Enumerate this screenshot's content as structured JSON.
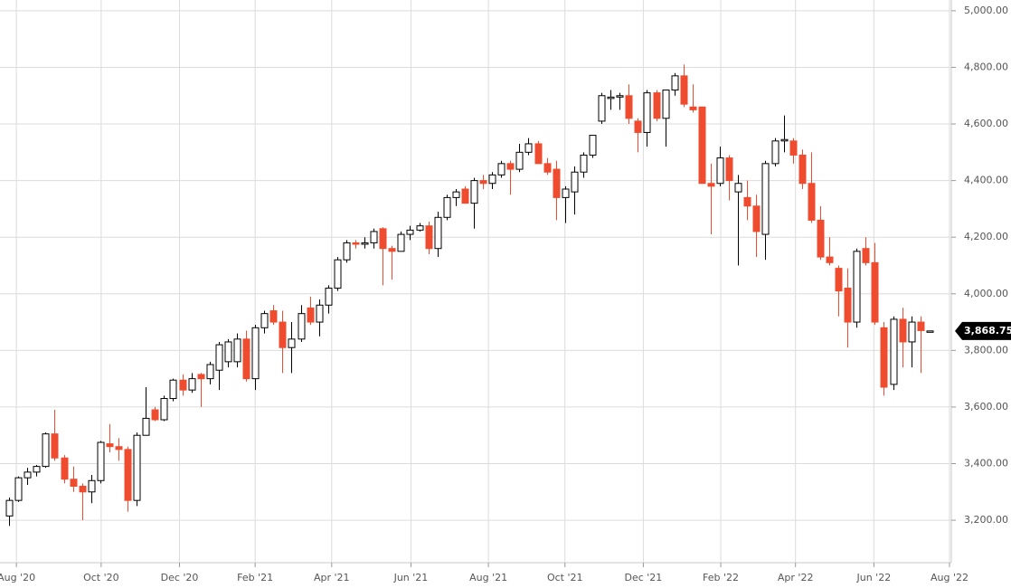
{
  "chart_data": {
    "type": "candlestick",
    "open": [
      3215,
      3270,
      3350,
      3370,
      3390,
      3505,
      3420,
      3345,
      3320,
      3300,
      3340,
      3470,
      3460,
      3450,
      3270,
      3500,
      3590,
      3555,
      3630,
      3695,
      3660,
      3715,
      3700,
      3730,
      3760,
      3760,
      3840,
      3700,
      3880,
      3940,
      3900,
      3810,
      3840,
      3950,
      3900,
      3960,
      4020,
      4120,
      4180,
      4175,
      4180,
      4230,
      4160,
      4150,
      4210,
      4225,
      4240,
      4160,
      4270,
      4340,
      4370,
      4320,
      4400,
      4390,
      4420,
      4460,
      4440,
      4500,
      4530,
      4460,
      4440,
      4340,
      4360,
      4430,
      4490,
      4610,
      4690,
      4695,
      4700,
      4610,
      4570,
      4710,
      4620,
      4720,
      4770,
      4660,
      4660,
      4390,
      4390,
      4480,
      4360,
      4340,
      4310,
      4210,
      4460,
      4540,
      4540,
      4490,
      4390,
      4260,
      4130,
      4090,
      4020,
      3900,
      4160,
      4110,
      3880,
      3680,
      3910,
      3830,
      3900,
      3868.75
    ],
    "high": [
      3280,
      3355,
      3385,
      3395,
      3510,
      3590,
      3430,
      3390,
      3330,
      3360,
      3480,
      3540,
      3490,
      3460,
      3510,
      3670,
      3600,
      3640,
      3700,
      3715,
      3720,
      3720,
      3760,
      3830,
      3840,
      3860,
      3870,
      3890,
      3940,
      3960,
      3940,
      3900,
      3960,
      3990,
      3980,
      4030,
      4130,
      4190,
      4190,
      4200,
      4230,
      4235,
      4170,
      4220,
      4240,
      4250,
      4255,
      4290,
      4350,
      4370,
      4380,
      4410,
      4420,
      4430,
      4470,
      4470,
      4530,
      4550,
      4540,
      4480,
      4470,
      4380,
      4450,
      4500,
      4560,
      4710,
      4720,
      4710,
      4740,
      4620,
      4720,
      4720,
      4720,
      4780,
      4810,
      4740,
      4660,
      4460,
      4520,
      4490,
      4420,
      4400,
      4350,
      4470,
      4550,
      4630,
      4550,
      4510,
      4500,
      4310,
      4200,
      4100,
      4090,
      4160,
      4200,
      4180,
      3900,
      3920,
      3950,
      3920,
      3920,
      3868.75
    ],
    "low": [
      3180,
      3265,
      3325,
      3355,
      3385,
      3410,
      3330,
      3300,
      3200,
      3260,
      3330,
      3440,
      3410,
      3230,
      3250,
      3500,
      3550,
      3550,
      3620,
      3640,
      3650,
      3600,
      3680,
      3660,
      3740,
      3740,
      3690,
      3660,
      3860,
      3890,
      3720,
      3720,
      3830,
      3890,
      3850,
      3930,
      4010,
      4110,
      4160,
      4160,
      4160,
      4030,
      4050,
      4150,
      4190,
      4220,
      4140,
      4130,
      4260,
      4310,
      4320,
      4230,
      4370,
      4370,
      4410,
      4350,
      4430,
      4490,
      4460,
      4420,
      4260,
      4250,
      4280,
      4410,
      4480,
      4600,
      4650,
      4650,
      4600,
      4500,
      4520,
      4610,
      4520,
      4700,
      4660,
      4640,
      4390,
      4210,
      4380,
      4330,
      4100,
      4260,
      4130,
      4120,
      4450,
      4500,
      4460,
      4370,
      4250,
      4120,
      4100,
      3920,
      3810,
      3880,
      4100,
      3890,
      3640,
      3660,
      3740,
      3740,
      3720,
      3868.75
    ],
    "close": [
      3270,
      3350,
      3370,
      3390,
      3505,
      3420,
      3345,
      3320,
      3300,
      3340,
      3475,
      3460,
      3450,
      3270,
      3500,
      3560,
      3555,
      3630,
      3695,
      3660,
      3700,
      3700,
      3750,
      3820,
      3830,
      3840,
      3700,
      3880,
      3930,
      3900,
      3810,
      3840,
      3930,
      3900,
      3960,
      4020,
      4120,
      4180,
      4175,
      4180,
      4220,
      4160,
      4150,
      4210,
      4225,
      4240,
      4160,
      4270,
      4340,
      4360,
      4320,
      4400,
      4390,
      4420,
      4460,
      4440,
      4500,
      4530,
      4460,
      4430,
      4340,
      4370,
      4430,
      4490,
      4560,
      4700,
      4695,
      4700,
      4620,
      4570,
      4710,
      4620,
      4720,
      4770,
      4670,
      4650,
      4390,
      4380,
      4480,
      4400,
      4390,
      4310,
      4220,
      4460,
      4540,
      4545,
      4490,
      4390,
      4260,
      4130,
      4110,
      4010,
      3900,
      4150,
      4110,
      3900,
      3670,
      3910,
      3830,
      3900,
      3870,
      3868.75
    ],
    "colors": {
      "up": "#ffffff",
      "down": "#ef4b2f",
      "outline": "#000000"
    },
    "xlim": [
      -1,
      103.4
    ],
    "xticks": [
      {
        "value": 0.8,
        "label": "Aug '20"
      },
      {
        "value": 10.1,
        "label": "Oct '20"
      },
      {
        "value": 18.7,
        "label": "Dec '20"
      },
      {
        "value": 27,
        "label": "Feb '21"
      },
      {
        "value": 35.4,
        "label": "Apr '21"
      },
      {
        "value": 44.1,
        "label": "Jun '21"
      },
      {
        "value": 52.6,
        "label": "Aug '21"
      },
      {
        "value": 61,
        "label": "Oct '21"
      },
      {
        "value": 69.6,
        "label": "Dec '21"
      },
      {
        "value": 78.1,
        "label": "Feb '22"
      },
      {
        "value": 86.3,
        "label": "Apr '22"
      },
      {
        "value": 94.9,
        "label": "Jun '22"
      },
      {
        "value": 103.2,
        "label": "Aug '22"
      }
    ],
    "ylim": [
      3050,
      5038
    ],
    "yticks": [
      {
        "value": 3200,
        "label": "3,200.00"
      },
      {
        "value": 3400,
        "label": "3,400.00"
      },
      {
        "value": 3600,
        "label": "3,600.00"
      },
      {
        "value": 3800,
        "label": "3,800.00"
      },
      {
        "value": 4000,
        "label": "4,000.00"
      },
      {
        "value": 4200,
        "label": "4,200.00"
      },
      {
        "value": 4400,
        "label": "4,400.00"
      },
      {
        "value": 4600,
        "label": "4,600.00"
      },
      {
        "value": 4800,
        "label": "4,800.00"
      },
      {
        "value": 5000,
        "label": "5,000.00"
      }
    ],
    "price_marker": {
      "value": 3868.75,
      "label": "3,868.75"
    },
    "grid": true
  }
}
